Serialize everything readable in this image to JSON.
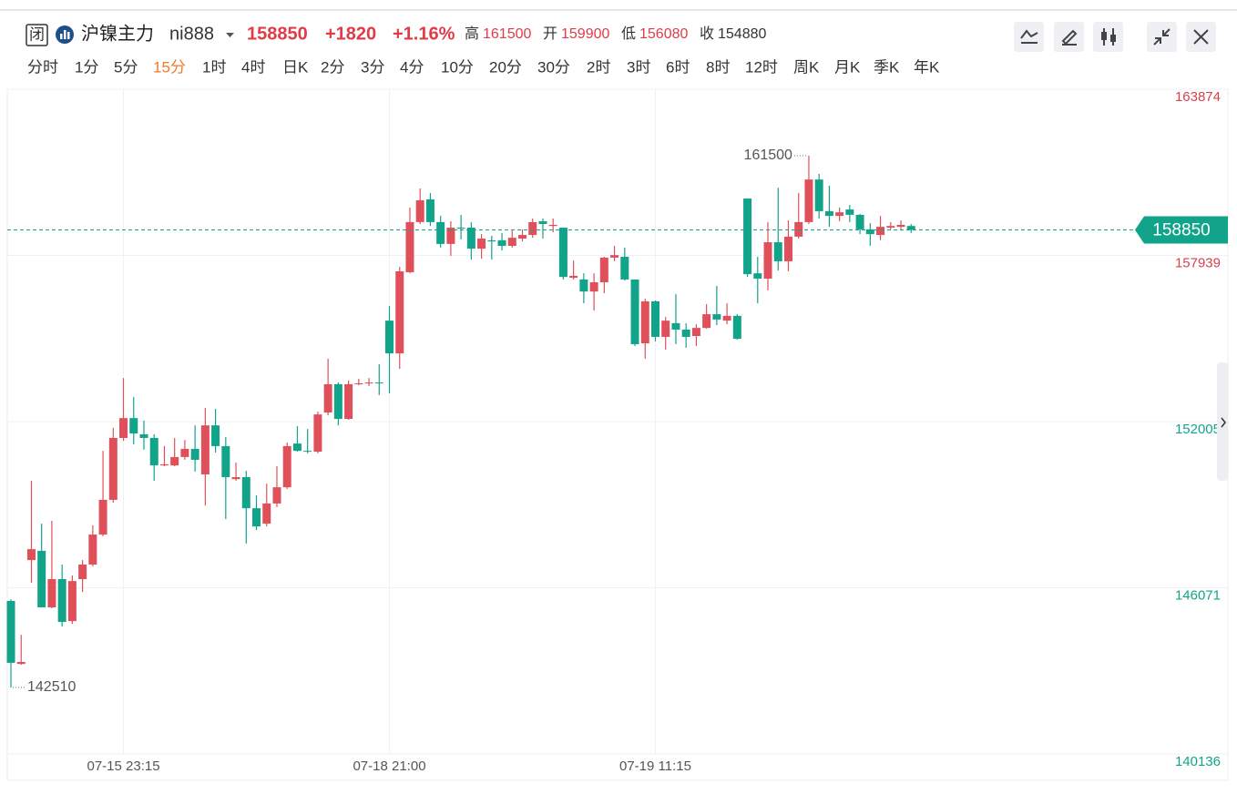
{
  "header": {
    "status": "闭",
    "name": "沪镍主力",
    "code": "ni888",
    "price": 158850,
    "change": "+1820",
    "change_pct": "+1.16%",
    "stats": [
      {
        "label": "高",
        "value": 161500
      },
      {
        "label": "开",
        "value": 159900
      },
      {
        "label": "低",
        "value": 156080
      },
      {
        "label": "收",
        "value": 154880
      }
    ]
  },
  "periods": [
    {
      "label": "分时"
    },
    {
      "label": "1分"
    },
    {
      "label": "5分"
    },
    {
      "label": "15分",
      "active": true
    },
    {
      "label": "1时"
    },
    {
      "label": "4时"
    },
    {
      "label": "日K"
    },
    {
      "label": "2分"
    },
    {
      "label": "3分"
    },
    {
      "label": "4分"
    },
    {
      "label": "10分"
    },
    {
      "label": "20分"
    },
    {
      "label": "30分"
    },
    {
      "label": "2时"
    },
    {
      "label": "3时"
    },
    {
      "label": "6时"
    },
    {
      "label": "8时"
    },
    {
      "label": "12时"
    },
    {
      "label": "周K"
    },
    {
      "label": "月K"
    },
    {
      "label": "季K"
    },
    {
      "label": "年K"
    }
  ],
  "chart_data": {
    "type": "candlestick",
    "up_color": "#e0505a",
    "down_color": "#12a38b",
    "ylim": [
      140136,
      163874
    ],
    "yticks": [
      140136,
      146071,
      152005,
      157939,
      163874
    ],
    "grid": true,
    "last_price": 158850,
    "high_marker": 161500,
    "low_marker": 142510,
    "categories": [
      null,
      null,
      null,
      null,
      null,
      null,
      null,
      null,
      null,
      null,
      null,
      "07-15 23:15",
      null,
      null,
      null,
      null,
      null,
      null,
      null,
      null,
      null,
      null,
      null,
      null,
      null,
      null,
      null,
      null,
      null,
      null,
      null,
      null,
      null,
      null,
      null,
      null,
      null,
      "07-18 21:00",
      null,
      null,
      null,
      null,
      null,
      null,
      null,
      null,
      null,
      null,
      null,
      null,
      null,
      null,
      null,
      null,
      null,
      null,
      null,
      null,
      null,
      null,
      null,
      null,
      null,
      "07-19 11:15",
      null,
      null,
      null,
      null,
      null,
      null,
      null,
      null,
      null,
      null,
      null,
      null,
      null,
      null,
      null,
      null,
      null,
      null,
      null,
      null,
      null,
      null,
      null,
      null,
      null
    ],
    "open": [
      145600,
      143350,
      147060,
      147390,
      145370,
      146380,
      144880,
      146380,
      146900,
      147970,
      149210,
      151420,
      152130,
      151550,
      151420,
      150440,
      150440,
      150740,
      151030,
      150120,
      151870,
      151130,
      149950,
      150020,
      148910,
      148360,
      149080,
      149660,
      151220,
      150960,
      150930,
      152330,
      153340,
      152100,
      153340,
      153370,
      153400,
      155610,
      154440,
      157340,
      159130,
      159940,
      159130,
      158350,
      158930,
      158930,
      158180,
      158480,
      158480,
      158280,
      158540,
      158670,
      159160,
      158990,
      158930,
      157140,
      157080,
      156650,
      156980,
      157860,
      157890,
      157080,
      154800,
      156300,
      155030,
      155520,
      155290,
      155060,
      155350,
      155840,
      155610,
      155780,
      159970,
      157300,
      157110,
      158410,
      157730,
      158610,
      159130,
      160650,
      159520,
      159350,
      159580,
      159390,
      158870,
      158670,
      158930,
      158960,
      158990
    ],
    "high": [
      145660,
      144390,
      149890,
      148360,
      148460,
      146900,
      146510,
      147060,
      148300,
      150960,
      151780,
      153560,
      152880,
      152040,
      151550,
      151130,
      151420,
      151350,
      151870,
      152490,
      152460,
      151450,
      150540,
      150250,
      149370,
      149790,
      150410,
      151260,
      151840,
      151740,
      152360,
      154250,
      153400,
      153470,
      153530,
      153560,
      154050,
      156130,
      157530,
      159650,
      160330,
      160170,
      159350,
      159160,
      159390,
      159130,
      158700,
      158640,
      158740,
      158830,
      158870,
      159260,
      159260,
      159260,
      158930,
      157760,
      157300,
      157300,
      157890,
      158280,
      158220,
      157080,
      156390,
      156330,
      155740,
      156560,
      155520,
      155480,
      156200,
      156850,
      156230,
      155840,
      159970,
      157890,
      159130,
      160360,
      159190,
      160170,
      161500,
      160850,
      160430,
      159650,
      159740,
      159420,
      159090,
      159350,
      159130,
      159190,
      159060
    ],
    "low": [
      142510,
      143320,
      146250,
      145370,
      145340,
      144690,
      144780,
      145920,
      146830,
      147910,
      149110,
      151320,
      151190,
      151000,
      149890,
      150410,
      150410,
      150640,
      150220,
      149010,
      150900,
      148520,
      149890,
      147650,
      148130,
      148260,
      148950,
      149600,
      150930,
      150870,
      150870,
      152230,
      151870,
      152070,
      153300,
      153270,
      152950,
      153010,
      153890,
      157300,
      159060,
      158990,
      158220,
      157920,
      158510,
      157790,
      157820,
      157790,
      158120,
      158220,
      158440,
      158570,
      158540,
      158770,
      157080,
      157080,
      156230,
      155970,
      156590,
      157730,
      157040,
      154700,
      154250,
      154870,
      154570,
      154770,
      154640,
      154700,
      155320,
      155450,
      155480,
      154930,
      157170,
      156230,
      156690,
      157400,
      157370,
      158540,
      159060,
      159260,
      158960,
      159160,
      159130,
      158700,
      158280,
      158480,
      158870,
      158870,
      158740
    ],
    "close": [
      143390,
      143420,
      147450,
      145370,
      146380,
      144850,
      146310,
      146900,
      147970,
      149210,
      151420,
      152130,
      151580,
      151420,
      150440,
      150480,
      150740,
      151030,
      150640,
      151870,
      151130,
      150020,
      150020,
      148910,
      148260,
      149080,
      149660,
      151130,
      150960,
      150930,
      152260,
      153340,
      152100,
      153340,
      153370,
      153400,
      153370,
      154440,
      157370,
      159130,
      159910,
      159130,
      158350,
      158930,
      158900,
      158180,
      158540,
      158440,
      158280,
      158570,
      158670,
      159130,
      159060,
      159030,
      157170,
      157210,
      156650,
      156980,
      157860,
      157950,
      157080,
      154770,
      156300,
      155030,
      155610,
      155290,
      155030,
      155350,
      155840,
      155650,
      155780,
      154960,
      157270,
      157110,
      158410,
      157730,
      158610,
      159130,
      160650,
      159520,
      159350,
      159480,
      159390,
      158870,
      158700,
      158960,
      158990,
      159030,
      158850
    ]
  }
}
